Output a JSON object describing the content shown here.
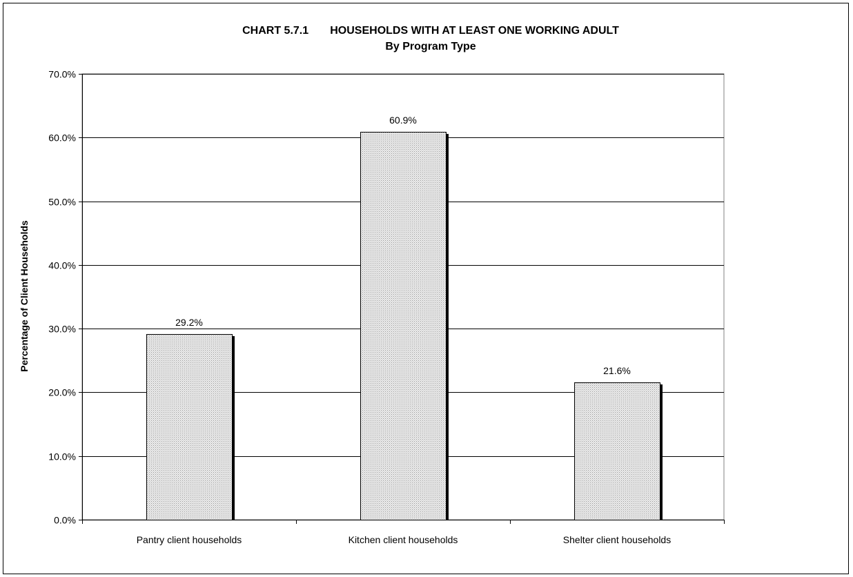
{
  "chart_data": {
    "type": "bar",
    "title": "CHART 5.7.1       HOUSEHOLDS WITH AT LEAST ONE WORKING ADULT",
    "subtitle": "By Program Type",
    "xlabel": "",
    "ylabel": "Percentage of Client Households",
    "categories": [
      "Pantry client households",
      "Kitchen client households",
      "Shelter client households"
    ],
    "values": [
      29.2,
      60.9,
      21.6
    ],
    "data_labels": [
      "29.2%",
      "60.9%",
      "21.6%"
    ],
    "ylim": [
      0,
      70
    ],
    "yticks": [
      0,
      10,
      20,
      30,
      40,
      50,
      60,
      70
    ],
    "ytick_labels": [
      "0.0%",
      "10.0%",
      "20.0%",
      "30.0%",
      "40.0%",
      "50.0%",
      "60.0%",
      "70.0%"
    ],
    "grid": true,
    "legend": "none",
    "bar_fill": "#e0e0e0",
    "bar_shadow": "#000000"
  }
}
